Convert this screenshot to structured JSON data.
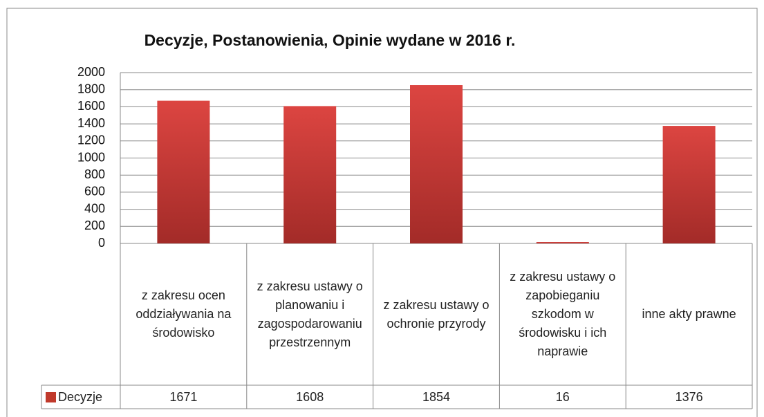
{
  "chart_data": {
    "type": "bar",
    "title": "Decyzje, Postanowienia, Opinie wydane w 2016 r.",
    "categories": [
      "z zakresu ocen oddziaływania na środowisko",
      "z zakresu ustawy o planowaniu i zagospodarowaniu przestrzennym",
      "z zakresu ustawy o ochronie przyrody",
      "z zakresu ustawy o zapobieganiu szkodom w środowisku i ich naprawie",
      "inne akty prawne"
    ],
    "series": [
      {
        "name": "Decyzje",
        "color": "#c0392b",
        "values": [
          1671,
          1608,
          1854,
          16,
          1376
        ]
      }
    ],
    "ylim": [
      0,
      2000
    ],
    "yticks": [
      0,
      200,
      400,
      600,
      800,
      1000,
      1200,
      1400,
      1600,
      1800,
      2000
    ],
    "grid": true,
    "legend": "data-table"
  }
}
